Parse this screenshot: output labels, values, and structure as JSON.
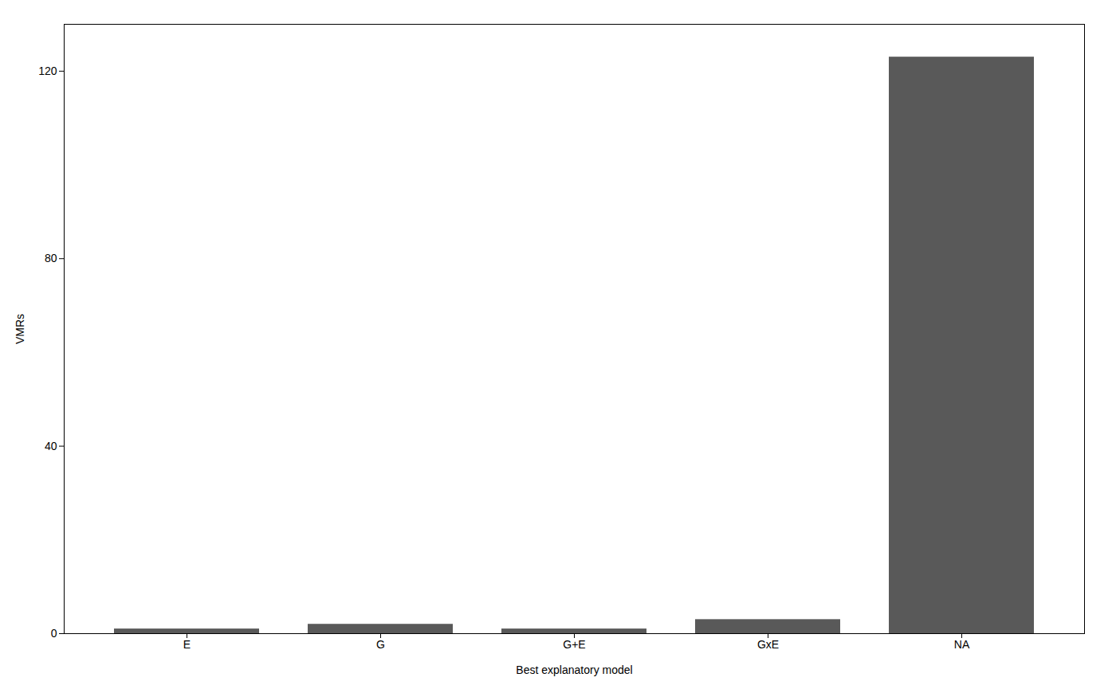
{
  "chart_data": {
    "type": "bar",
    "categories": [
      "E",
      "G",
      "G+E",
      "GxE",
      "NA"
    ],
    "values": [
      1,
      2,
      1,
      3,
      123
    ],
    "color": "#595959",
    "xlabel": "Best explanatory model",
    "ylabel": "VMRs",
    "ylim": [
      0,
      130
    ],
    "yticks": [
      0,
      40,
      80,
      120
    ]
  }
}
